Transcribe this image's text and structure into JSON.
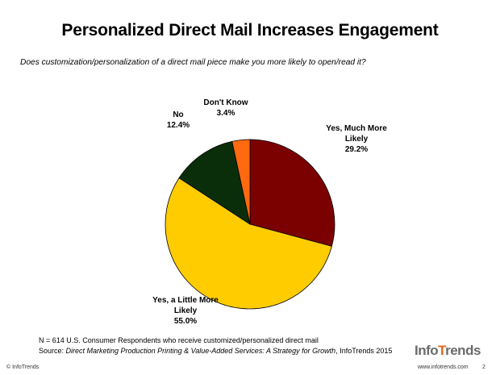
{
  "header": {
    "title": "Personalized Direct Mail Increases Engagement",
    "question": "Does customization/personalization of a direct mail piece make you more likely to open/read it?"
  },
  "chart_data": {
    "type": "pie",
    "title": "",
    "slices": [
      {
        "label_lines": [
          "Yes, Much More",
          "Likely"
        ],
        "value": 29.2,
        "value_label": "29.2%",
        "color": "#7b0000"
      },
      {
        "label_lines": [
          "Yes, a Little More",
          "Likely"
        ],
        "value": 55.0,
        "value_label": "55.0%",
        "color": "#ffcc00"
      },
      {
        "label_lines": [
          "No"
        ],
        "value": 12.4,
        "value_label": "12.4%",
        "color": "#0a2e0a"
      },
      {
        "label_lines": [
          "Don't Know"
        ],
        "value": 3.4,
        "value_label": "3.4%",
        "color": "#ff6a10"
      }
    ],
    "start_angle_deg": 0,
    "direction": "clockwise",
    "legend": "none"
  },
  "notes": {
    "sample": "N = 614 U.S. Consumer Respondents who receive customized/personalized direct mail",
    "source_prefix": "Source: ",
    "source_title": "Direct Marketing Production Printing & Value-Added Services: A Strategy for Growth",
    "source_suffix": ", InfoTrends 2015"
  },
  "footer": {
    "copyright": "© InfoTrends",
    "url": "www.infotrends.com",
    "page_number": "2"
  },
  "logo": {
    "part1": "Info",
    "accent": "T",
    "part2": "rends"
  }
}
